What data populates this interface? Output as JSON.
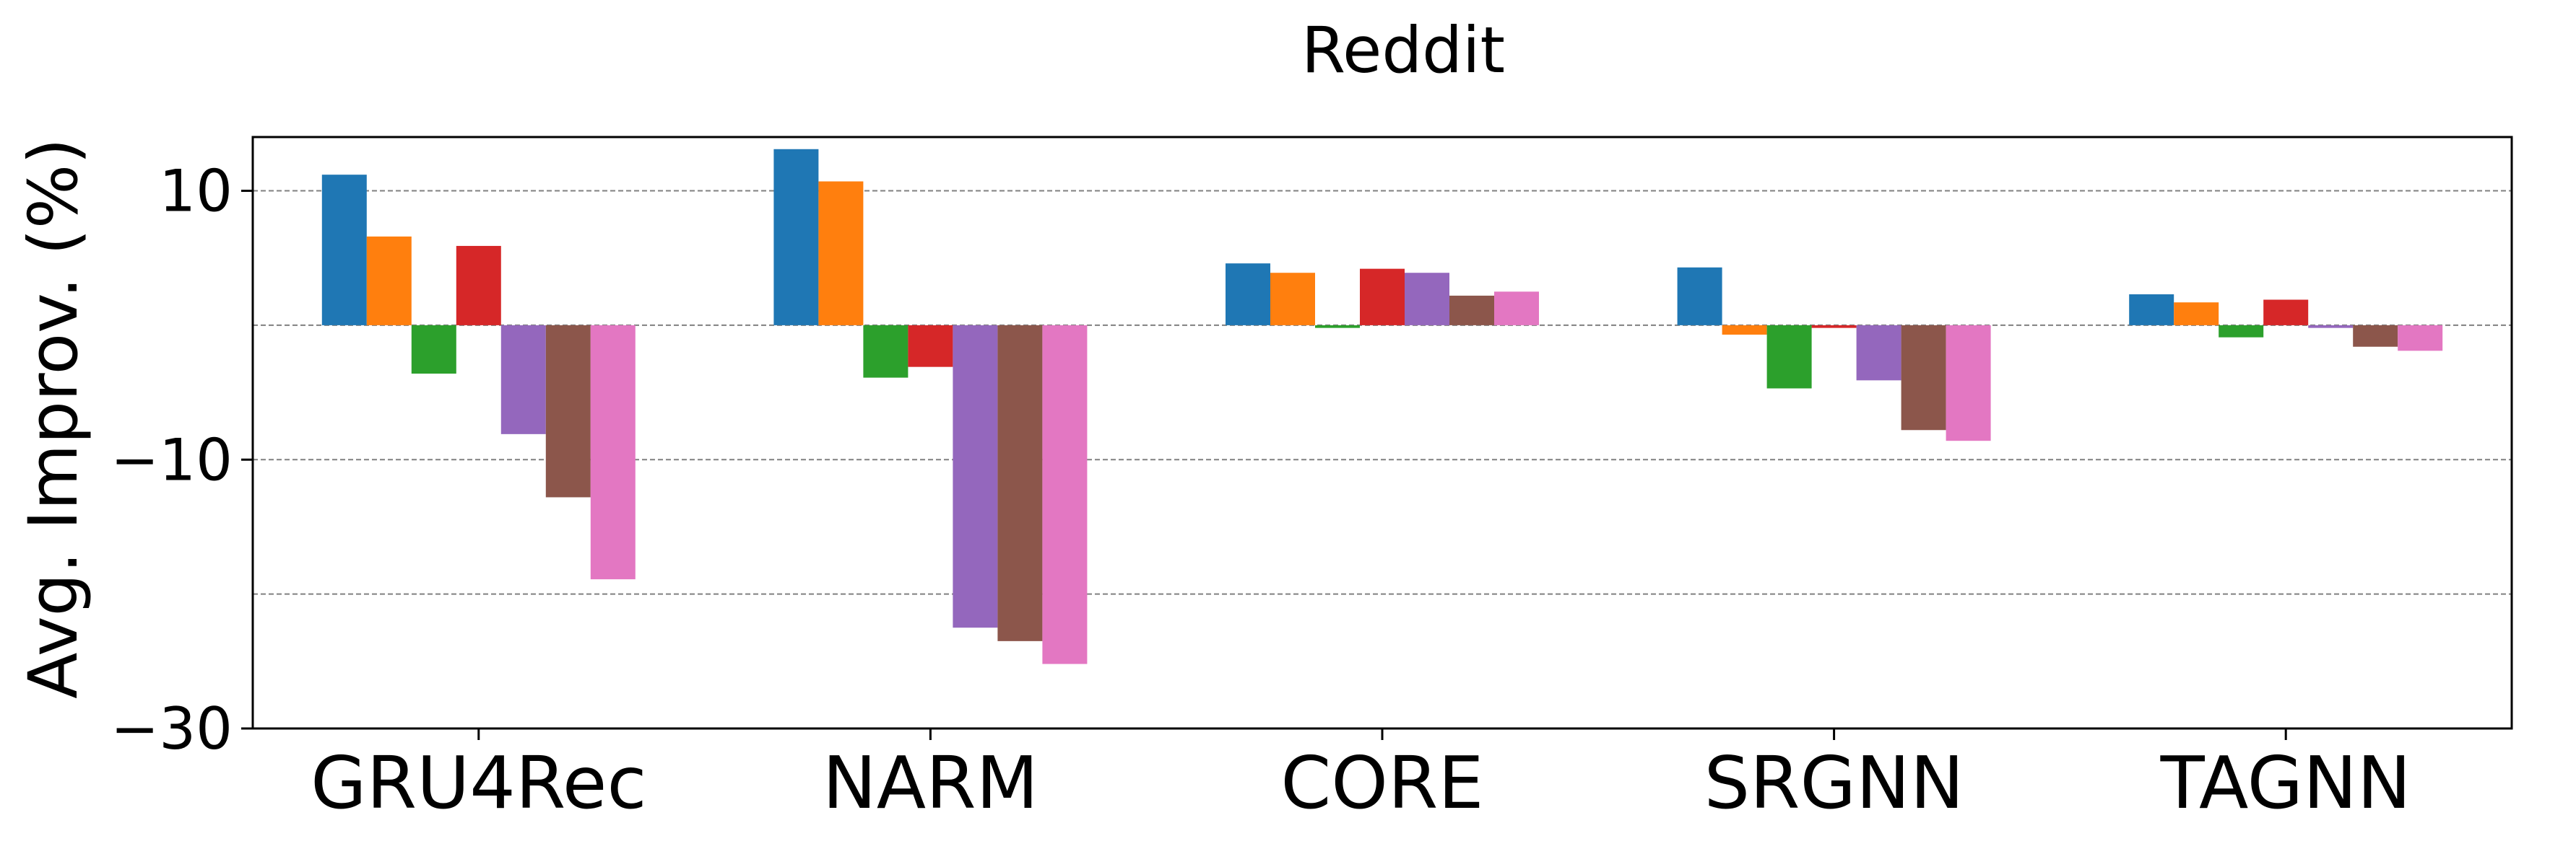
{
  "chart_data": {
    "type": "bar",
    "title": "Reddit",
    "xlabel": "",
    "ylabel": "Avg. Improv. (%)",
    "categories": [
      "GRU4Rec",
      "NARM",
      "CORE",
      "SRGNN",
      "TAGNN"
    ],
    "ylim": [
      -30,
      14
    ],
    "yticks": [
      10,
      -10,
      -30
    ],
    "ytick_labels": [
      "10",
      "−10",
      "−30"
    ],
    "gridlines": [
      10,
      0,
      -10,
      -20
    ],
    "grid": "horizontal dashed",
    "series": [
      {
        "color": "#1f77b4",
        "values": [
          11.2,
          13.1,
          4.6,
          4.3,
          2.3
        ]
      },
      {
        "color": "#ff7f0e",
        "values": [
          6.6,
          10.7,
          3.9,
          -0.7,
          1.7
        ]
      },
      {
        "color": "#2ca02c",
        "values": [
          -3.6,
          -3.9,
          -0.2,
          -4.7,
          -0.9
        ]
      },
      {
        "color": "#d62728",
        "values": [
          5.9,
          -3.1,
          4.2,
          -0.2,
          1.9
        ]
      },
      {
        "color": "#9467bd",
        "values": [
          -8.1,
          -22.5,
          3.9,
          -4.1,
          -0.2
        ]
      },
      {
        "color": "#8c564b",
        "values": [
          -12.8,
          -23.5,
          2.2,
          -7.8,
          -1.6
        ]
      },
      {
        "color": "#e377c2",
        "values": [
          -18.9,
          -25.2,
          2.5,
          -8.6,
          -1.9
        ]
      }
    ]
  }
}
